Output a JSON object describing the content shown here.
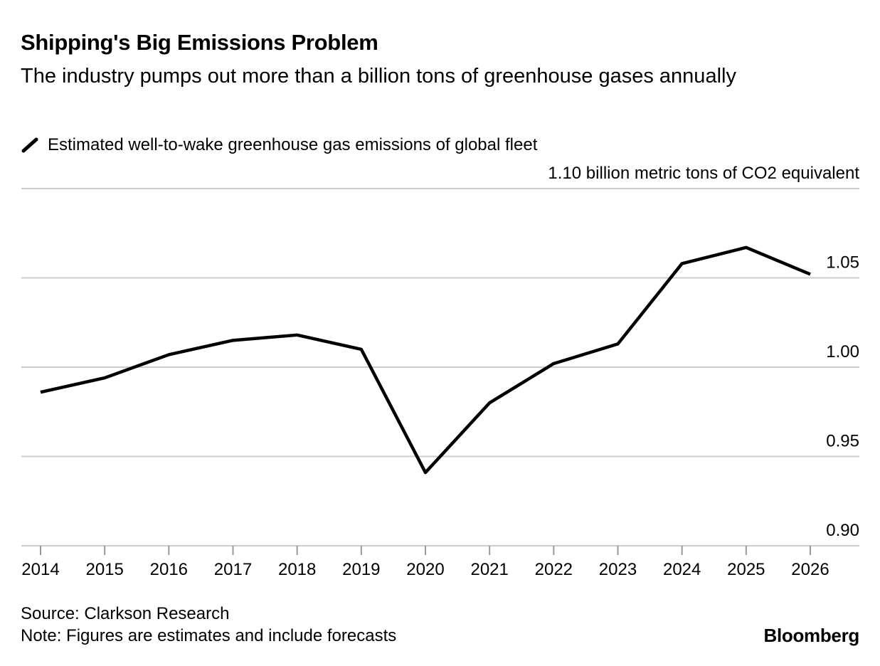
{
  "chart_data": {
    "type": "line",
    "title": "Shipping's Big Emissions Problem",
    "subtitle": "The industry pumps out more than a billion tons of greenhouse gases annually",
    "categories": [
      "2014",
      "2015",
      "2016",
      "2017",
      "2018",
      "2019",
      "2020",
      "2021",
      "2022",
      "2023",
      "2024",
      "2025",
      "2026"
    ],
    "series": [
      {
        "name": "Estimated well-to-wake greenhouse gas emissions of global fleet",
        "color": "#000000",
        "values": [
          0.986,
          0.994,
          1.007,
          1.015,
          1.018,
          1.01,
          0.941,
          0.98,
          1.002,
          1.013,
          1.058,
          1.067,
          1.052
        ]
      }
    ],
    "ylim": [
      0.9,
      1.1
    ],
    "yticks": [
      {
        "value": 0.9,
        "label": "0.90"
      },
      0.95,
      {
        "value": 1,
        "label": "1.00"
      },
      1.05,
      {
        "value": 1.1,
        "label": "1.10 billion metric tons of CO2 equivalent"
      }
    ],
    "grid": true,
    "source": "Source: Clarkson Research",
    "note": "Note: Figures are estimates and include forecasts",
    "brand": "Bloomberg"
  }
}
